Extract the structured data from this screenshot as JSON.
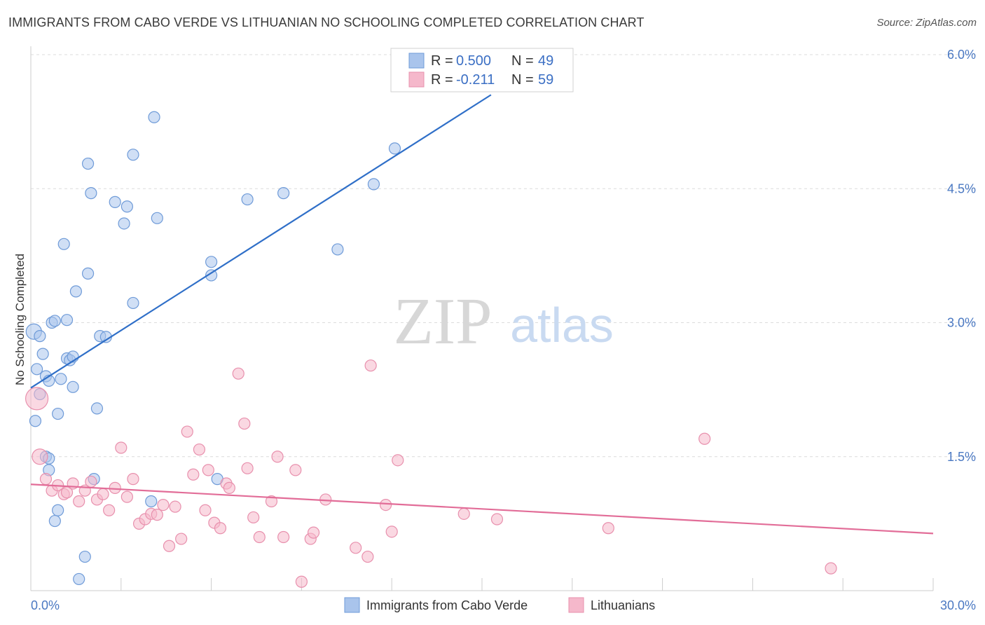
{
  "chart_data": {
    "type": "scatter",
    "title": "IMMIGRANTS FROM CABO VERDE VS LITHUANIAN NO SCHOOLING COMPLETED CORRELATION CHART",
    "source": "Source: ZipAtlas.com",
    "watermark": {
      "zip": "ZIP",
      "atlas": "atlas"
    },
    "xlabel": "",
    "ylabel": "No Schooling Completed",
    "xlim": [
      0,
      30
    ],
    "ylim": [
      0,
      6.0
    ],
    "x_tick_labels": [
      {
        "value": 0,
        "label": "0.0%"
      },
      {
        "value": 30,
        "label": "30.0%"
      }
    ],
    "y_tick_labels": [
      {
        "value": 1.5,
        "label": "1.5%"
      },
      {
        "value": 3.0,
        "label": "3.0%"
      },
      {
        "value": 4.5,
        "label": "4.5%"
      },
      {
        "value": 6.0,
        "label": "6.0%"
      }
    ],
    "stats": [
      {
        "r_label": "R =",
        "r_value": "0.500",
        "n_label": "N =",
        "n_value": "49"
      },
      {
        "r_label": "R =",
        "r_value": "-0.211",
        "n_label": "N =",
        "n_value": "59"
      }
    ],
    "colors": {
      "blue_fill": "#a9c4ec",
      "blue_stroke": "#6f9bd8",
      "blue_line": "#2f6fc8",
      "pink_fill": "#f5b8cb",
      "pink_stroke": "#e890ad",
      "pink_line": "#e26d98",
      "grid": "#dcdcdc",
      "tick_label": "#4a78c2"
    },
    "series": [
      {
        "name": "Immigrants from Cabo Verde",
        "trend": {
          "x0": 0,
          "y0": 2.27,
          "x1": 15.3,
          "y1": 5.55
        },
        "points": [
          [
            0.1,
            2.9
          ],
          [
            0.3,
            2.85
          ],
          [
            0.4,
            2.65
          ],
          [
            0.2,
            2.48
          ],
          [
            0.5,
            2.4
          ],
          [
            0.6,
            2.35
          ],
          [
            0.3,
            2.2
          ],
          [
            0.15,
            1.9
          ],
          [
            0.7,
            3.0
          ],
          [
            0.8,
            3.02
          ],
          [
            1.2,
            3.03
          ],
          [
            1.0,
            2.37
          ],
          [
            1.2,
            2.6
          ],
          [
            1.3,
            2.58
          ],
          [
            1.4,
            2.62
          ],
          [
            1.4,
            2.28
          ],
          [
            0.9,
            1.98
          ],
          [
            2.3,
            2.85
          ],
          [
            2.5,
            2.84
          ],
          [
            1.1,
            3.88
          ],
          [
            1.9,
            4.78
          ],
          [
            2.0,
            4.45
          ],
          [
            1.9,
            3.55
          ],
          [
            1.5,
            3.35
          ],
          [
            2.2,
            2.04
          ],
          [
            2.8,
            4.35
          ],
          [
            3.2,
            4.3
          ],
          [
            3.1,
            4.11
          ],
          [
            3.4,
            4.88
          ],
          [
            4.2,
            4.17
          ],
          [
            4.1,
            5.3
          ],
          [
            3.4,
            3.22
          ],
          [
            6.0,
            3.68
          ],
          [
            6.0,
            3.53
          ],
          [
            7.2,
            4.38
          ],
          [
            8.4,
            4.45
          ],
          [
            10.2,
            3.82
          ],
          [
            11.4,
            4.55
          ],
          [
            12.1,
            4.95
          ],
          [
            0.5,
            1.5
          ],
          [
            0.6,
            1.48
          ],
          [
            0.6,
            1.35
          ],
          [
            2.1,
            1.25
          ],
          [
            0.8,
            0.78
          ],
          [
            0.9,
            0.9
          ],
          [
            4.0,
            1.0
          ],
          [
            6.2,
            1.25
          ],
          [
            1.8,
            0.38
          ],
          [
            1.6,
            0.13
          ]
        ]
      },
      {
        "name": "Lithuanians",
        "trend": {
          "x0": 0,
          "y0": 1.19,
          "x1": 30,
          "y1": 0.64
        },
        "points": [
          [
            0.2,
            2.15
          ],
          [
            0.3,
            1.5
          ],
          [
            0.5,
            1.25
          ],
          [
            0.7,
            1.12
          ],
          [
            0.9,
            1.18
          ],
          [
            1.1,
            1.08
          ],
          [
            1.2,
            1.1
          ],
          [
            1.4,
            1.2
          ],
          [
            1.6,
            1.0
          ],
          [
            1.8,
            1.12
          ],
          [
            2.0,
            1.22
          ],
          [
            2.2,
            1.02
          ],
          [
            2.4,
            1.08
          ],
          [
            2.6,
            0.9
          ],
          [
            2.8,
            1.15
          ],
          [
            3.0,
            1.6
          ],
          [
            3.2,
            1.05
          ],
          [
            3.4,
            1.25
          ],
          [
            3.6,
            0.75
          ],
          [
            3.8,
            0.8
          ],
          [
            4.0,
            0.86
          ],
          [
            4.2,
            0.85
          ],
          [
            4.4,
            0.96
          ],
          [
            4.6,
            0.5
          ],
          [
            4.8,
            0.94
          ],
          [
            5.0,
            0.58
          ],
          [
            5.2,
            1.78
          ],
          [
            5.4,
            1.3
          ],
          [
            5.6,
            1.58
          ],
          [
            5.9,
            1.35
          ],
          [
            5.8,
            0.9
          ],
          [
            6.1,
            0.76
          ],
          [
            6.3,
            0.7
          ],
          [
            6.5,
            1.2
          ],
          [
            6.6,
            1.15
          ],
          [
            6.9,
            2.43
          ],
          [
            7.1,
            1.87
          ],
          [
            7.2,
            1.37
          ],
          [
            7.4,
            0.82
          ],
          [
            7.6,
            0.6
          ],
          [
            8.0,
            1.0
          ],
          [
            8.2,
            1.5
          ],
          [
            8.4,
            0.6
          ],
          [
            8.8,
            1.35
          ],
          [
            9.0,
            0.1
          ],
          [
            9.3,
            0.58
          ],
          [
            9.4,
            0.65
          ],
          [
            9.8,
            1.02
          ],
          [
            10.8,
            0.48
          ],
          [
            11.2,
            0.38
          ],
          [
            11.3,
            2.52
          ],
          [
            11.8,
            0.96
          ],
          [
            12.0,
            0.66
          ],
          [
            12.2,
            1.46
          ],
          [
            14.4,
            0.86
          ],
          [
            15.5,
            0.8
          ],
          [
            19.2,
            0.7
          ],
          [
            22.4,
            1.7
          ],
          [
            26.6,
            0.25
          ]
        ]
      }
    ]
  }
}
